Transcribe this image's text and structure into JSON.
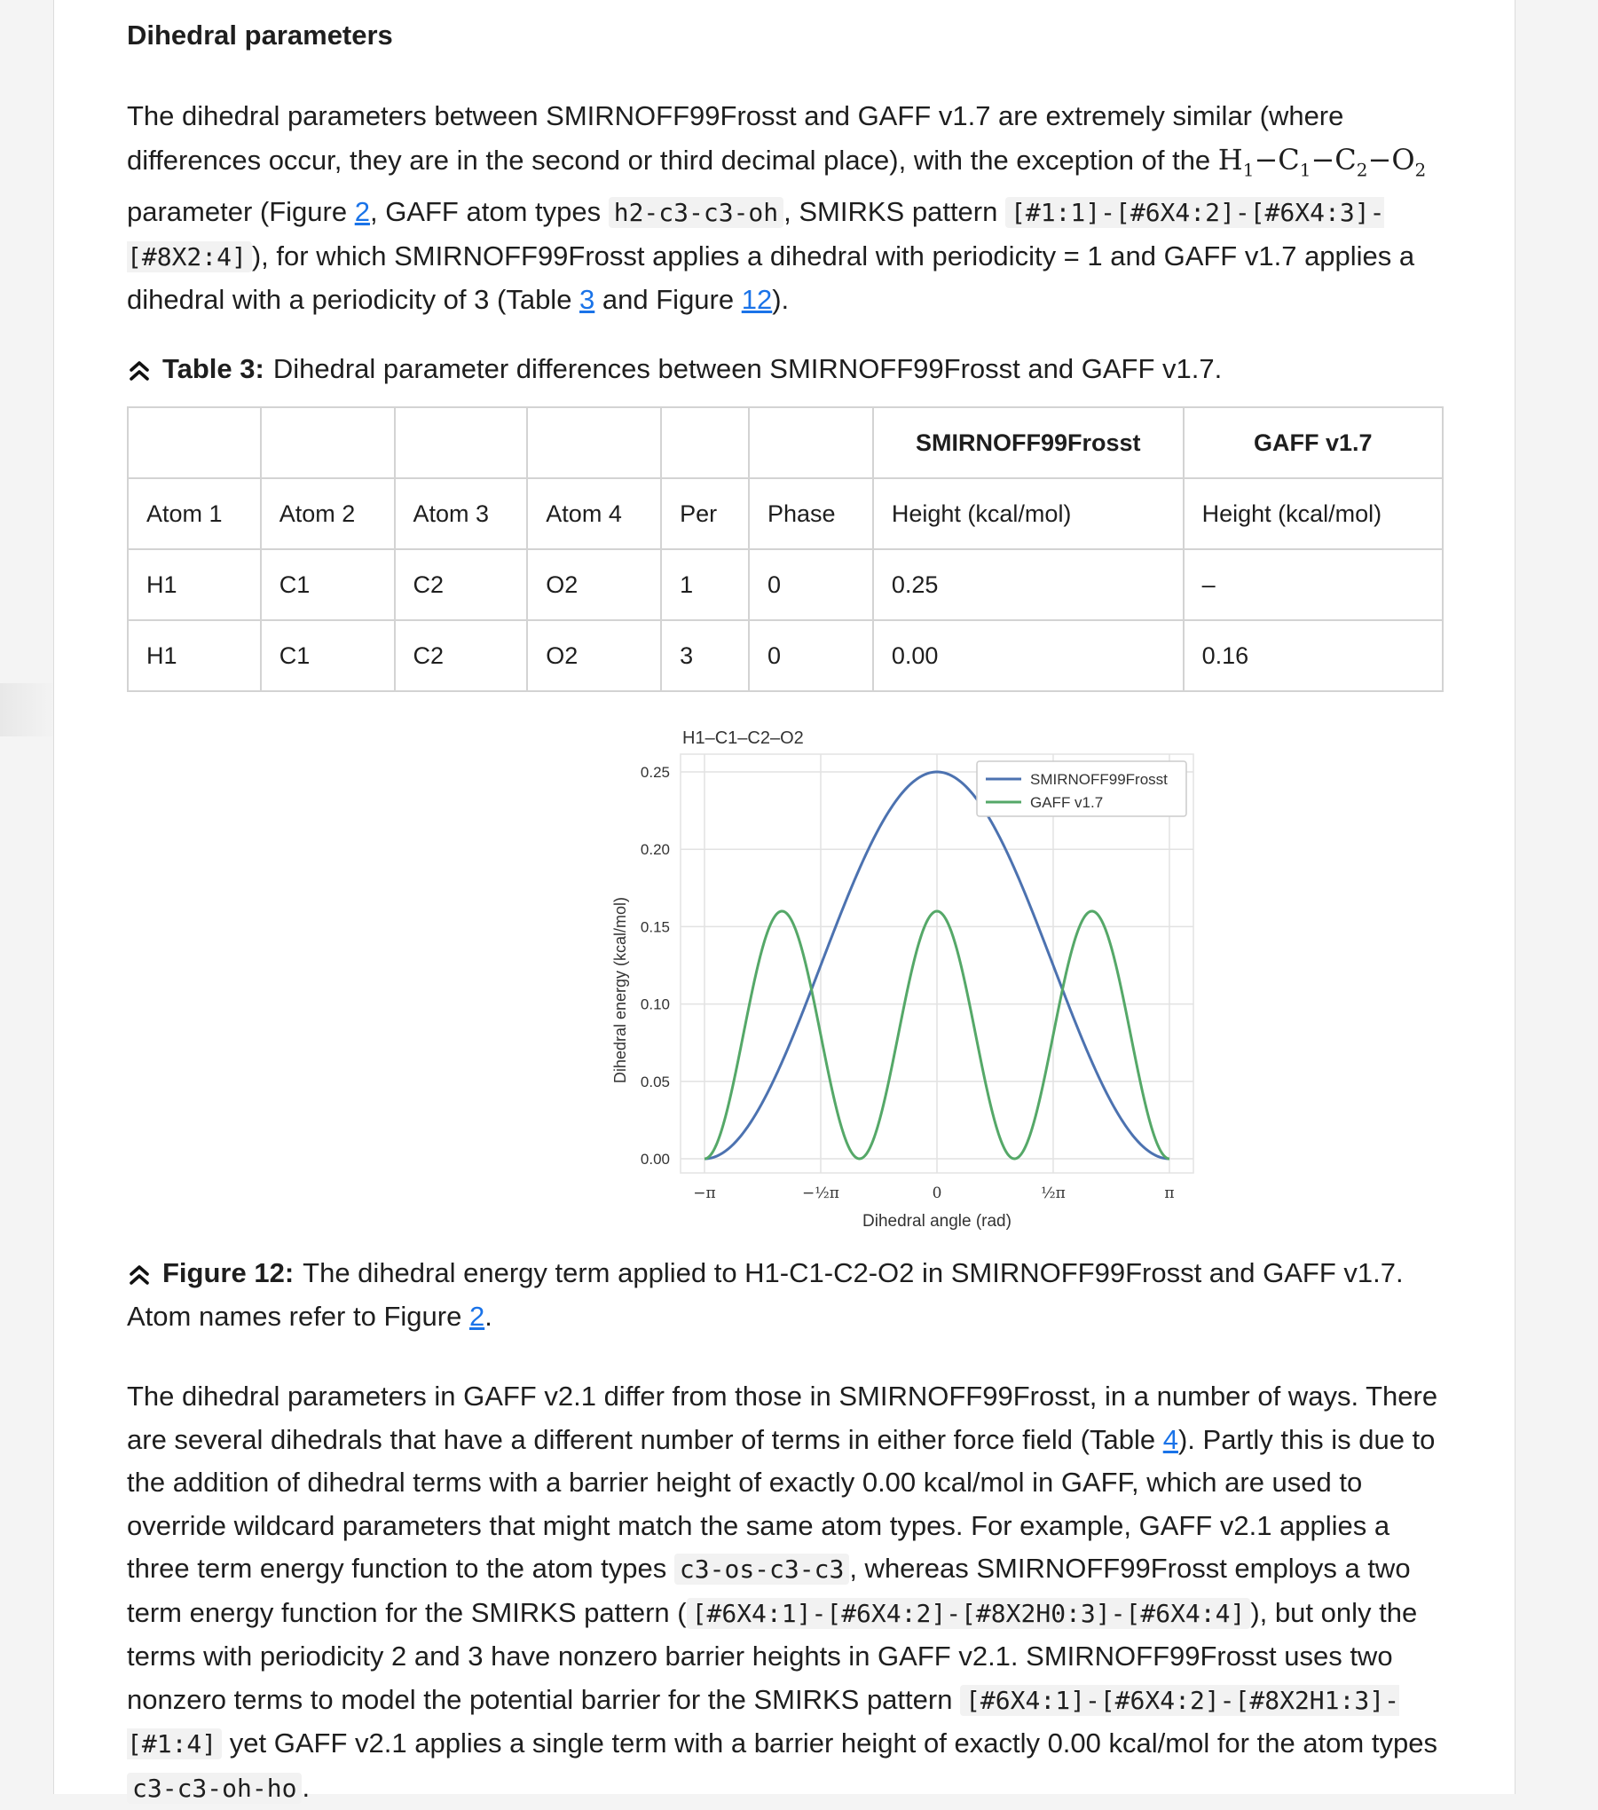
{
  "section_title": "Dihedral parameters",
  "para1": {
    "t1": "The dihedral parameters between SMIRNOFF99Frosst and GAFF v1.7 are extremely similar (where differences occur, they are in the second or third decimal place), with the exception of the ",
    "t2": " parameter (Figure ",
    "ref_fig2": "2",
    "t3": ", GAFF atom types ",
    "code_atomtypes": "h2-c3-c3-oh",
    "t4": ", SMIRKS pattern ",
    "code_smirks": "[#1:1]-[#6X4:2]-[#6X4:3]-[#8X2:4]",
    "t5": "), for which SMIRNOFF99Frosst applies a dihedral with periodicity = 1 and GAFF v1.7 applies a dihedral with a periodicity of 3 (Table ",
    "ref_table3": "3",
    "t6": " and Figure ",
    "ref_fig12": "12",
    "t7": ")."
  },
  "table_caption": {
    "label": "Table 3:",
    "text": "Dihedral parameter differences between SMIRNOFF99Frosst and GAFF v1.7."
  },
  "table": {
    "group_headers": [
      "",
      "",
      "",
      "",
      "",
      "",
      "SMIRNOFF99Frosst",
      "GAFF v1.7"
    ],
    "headers": [
      "Atom 1",
      "Atom 2",
      "Atom 3",
      "Atom 4",
      "Per",
      "Phase",
      "Height (kcal/mol)",
      "Height (kcal/mol)"
    ],
    "rows": [
      [
        "H1",
        "C1",
        "C2",
        "O2",
        "1",
        "0",
        "0.25",
        "–"
      ],
      [
        "H1",
        "C1",
        "C2",
        "O2",
        "3",
        "0",
        "0.00",
        "0.16"
      ]
    ]
  },
  "chart_data": {
    "type": "line",
    "title": "H1–C1–C2–O2",
    "xlabel": "Dihedral angle (rad)",
    "ylabel": "Dihedral energy (kcal/mol)",
    "xlim": [
      -3.1416,
      3.1416
    ],
    "ylim": [
      0,
      0.25
    ],
    "xticks": [
      "−π",
      "−½π",
      "0",
      "½π",
      "π"
    ],
    "yticks": [
      "0.00",
      "0.05",
      "0.10",
      "0.15",
      "0.20",
      "0.25"
    ],
    "grid": true,
    "legend_position": "top-right",
    "series": [
      {
        "name": "SMIRNOFF99Frosst",
        "color": "#4c72b0",
        "function": "0.25*(1+cos(x))/2",
        "periodicity": 1,
        "phase": 0,
        "height": 0.25
      },
      {
        "name": "GAFF v1.7",
        "color": "#55a868",
        "function": "0.16*(1+cos(3x))/2",
        "periodicity": 3,
        "phase": 0,
        "height": 0.16
      }
    ]
  },
  "figure_caption": {
    "label": "Figure 12:",
    "t1": "The dihedral energy term applied to H1-C1-C2-O2 in SMIRNOFF99Frosst and GAFF v1.7. Atom names refer to Figure ",
    "ref_fig2": "2",
    "t2": "."
  },
  "para2": {
    "t1": "The dihedral parameters in GAFF v2.1 differ from those in SMIRNOFF99Frosst, in a number of ways. There are several dihedrals that have a different number of terms in either force field (Table ",
    "ref_table4": "4",
    "t2": "). Partly this is due to the addition of dihedral terms with a barrier height of exactly 0.00 kcal/mol in GAFF, which are used to override wildcard parameters that might match the same atom types. For example, GAFF v2.1 applies a three term energy function to the atom types ",
    "code1": "c3-os-c3-c3",
    "t3": ", whereas SMIRNOFF99Frosst employs a two term energy function for the SMIRKS pattern (",
    "code2": "[#6X4:1]-[#6X4:2]-[#8X2H0:3]-[#6X4:4]",
    "t4": "), but only the terms with periodicity 2 and 3 have nonzero barrier heights in GAFF v2.1. SMIRNOFF99Frosst uses two nonzero terms to model the potential barrier for the SMIRKS pattern ",
    "code3": "[#6X4:1]-[#6X4:2]-[#8X2H1:3]-[#1:4]",
    "t5": " yet GAFF v2.1 applies a single term with a barrier height of exactly 0.00 kcal/mol for the atom types ",
    "code4": "c3-c3-oh-ho",
    "t6": "."
  }
}
